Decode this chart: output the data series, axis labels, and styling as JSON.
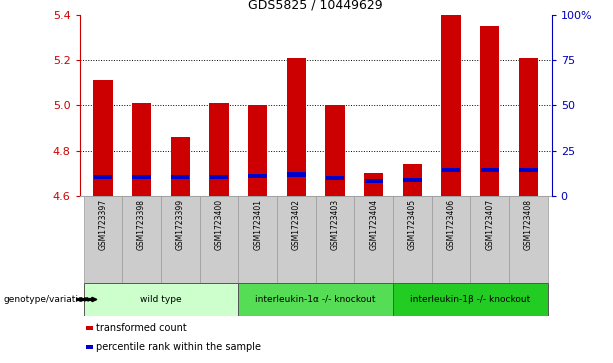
{
  "title": "GDS5825 / 10449629",
  "samples": [
    "GSM1723397",
    "GSM1723398",
    "GSM1723399",
    "GSM1723400",
    "GSM1723401",
    "GSM1723402",
    "GSM1723403",
    "GSM1723404",
    "GSM1723405",
    "GSM1723406",
    "GSM1723407",
    "GSM1723408"
  ],
  "red_values": [
    5.11,
    5.01,
    4.86,
    5.01,
    5.0,
    5.21,
    5.0,
    4.7,
    4.74,
    5.4,
    5.35,
    5.21
  ],
  "blue_values": [
    4.685,
    4.685,
    4.685,
    4.685,
    4.69,
    4.695,
    4.68,
    4.665,
    4.67,
    4.715,
    4.715,
    4.715
  ],
  "y_min": 4.6,
  "y_max": 5.4,
  "y_ticks_left": [
    4.6,
    4.8,
    5.0,
    5.2,
    5.4
  ],
  "y_ticks_right": [
    0,
    25,
    50,
    75,
    100
  ],
  "groups": [
    {
      "label": "wild type",
      "start": 0,
      "end": 3,
      "color": "#ccffcc"
    },
    {
      "label": "interleukin-1α -/- knockout",
      "start": 4,
      "end": 7,
      "color": "#55dd55"
    },
    {
      "label": "interleukin-1β -/- knockout",
      "start": 8,
      "end": 11,
      "color": "#22cc22"
    }
  ],
  "legend_items": [
    {
      "color": "#cc0000",
      "label": "transformed count"
    },
    {
      "color": "#0000cc",
      "label": "percentile rank within the sample"
    }
  ],
  "bar_color_red": "#cc0000",
  "bar_color_blue": "#0000cc",
  "left_axis_color": "#cc0000",
  "right_axis_color": "#0000bb",
  "grid_color": "#000000",
  "tick_bg_color": "#cccccc",
  "genotype_label": "genotype/variation",
  "bar_width": 0.5
}
